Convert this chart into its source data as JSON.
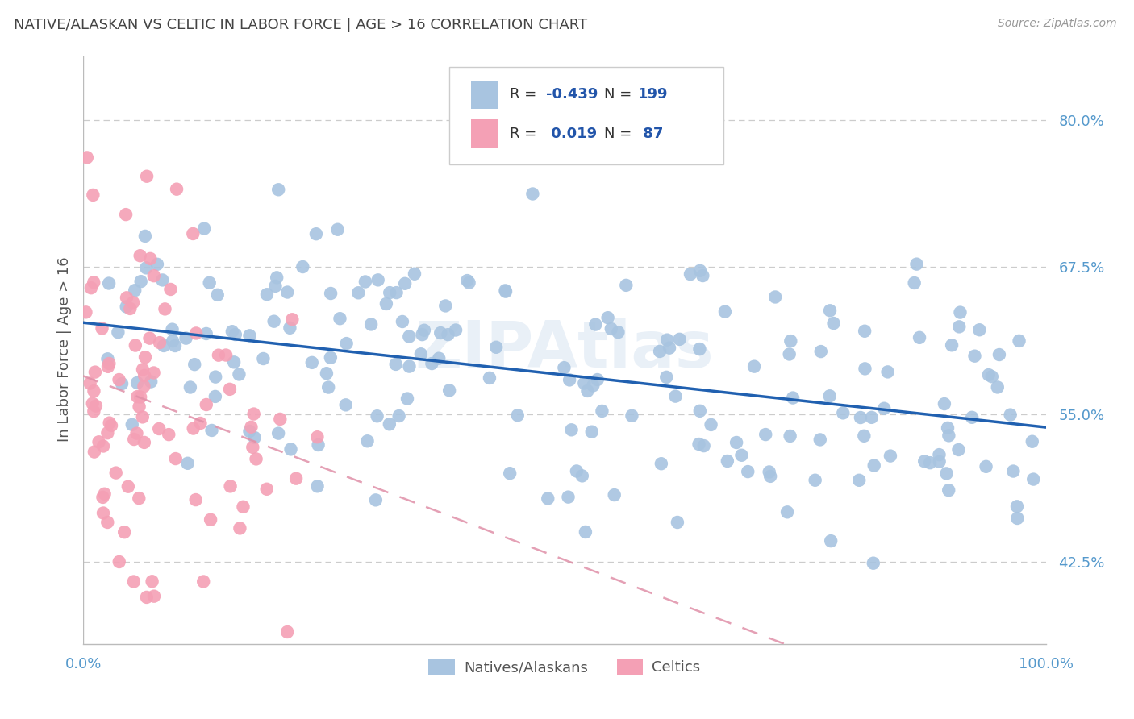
{
  "title": "NATIVE/ALASKAN VS CELTIC IN LABOR FORCE | AGE > 16 CORRELATION CHART",
  "source": "Source: ZipAtlas.com",
  "ylabel": "In Labor Force | Age > 16",
  "yticks": [
    "42.5%",
    "55.0%",
    "67.5%",
    "80.0%"
  ],
  "ytick_vals": [
    0.425,
    0.55,
    0.675,
    0.8
  ],
  "xlim": [
    0.0,
    1.0
  ],
  "ylim": [
    0.355,
    0.855
  ],
  "blue_R": -0.439,
  "blue_N": 199,
  "pink_R": 0.019,
  "pink_N": 87,
  "blue_color": "#a8c4e0",
  "pink_color": "#f4a0b5",
  "blue_line_color": "#2060b0",
  "pink_line_color": "#e090a8",
  "watermark": "ZIPAtlas",
  "legend_label_blue": "Natives/Alaskans",
  "legend_label_pink": "Celtics",
  "blue_scatter_seed": 42,
  "pink_scatter_seed": 123,
  "background_color": "#ffffff",
  "grid_color": "#cccccc",
  "title_color": "#444444",
  "axis_label_color": "#5599cc",
  "legend_text_color": "#2255aa"
}
